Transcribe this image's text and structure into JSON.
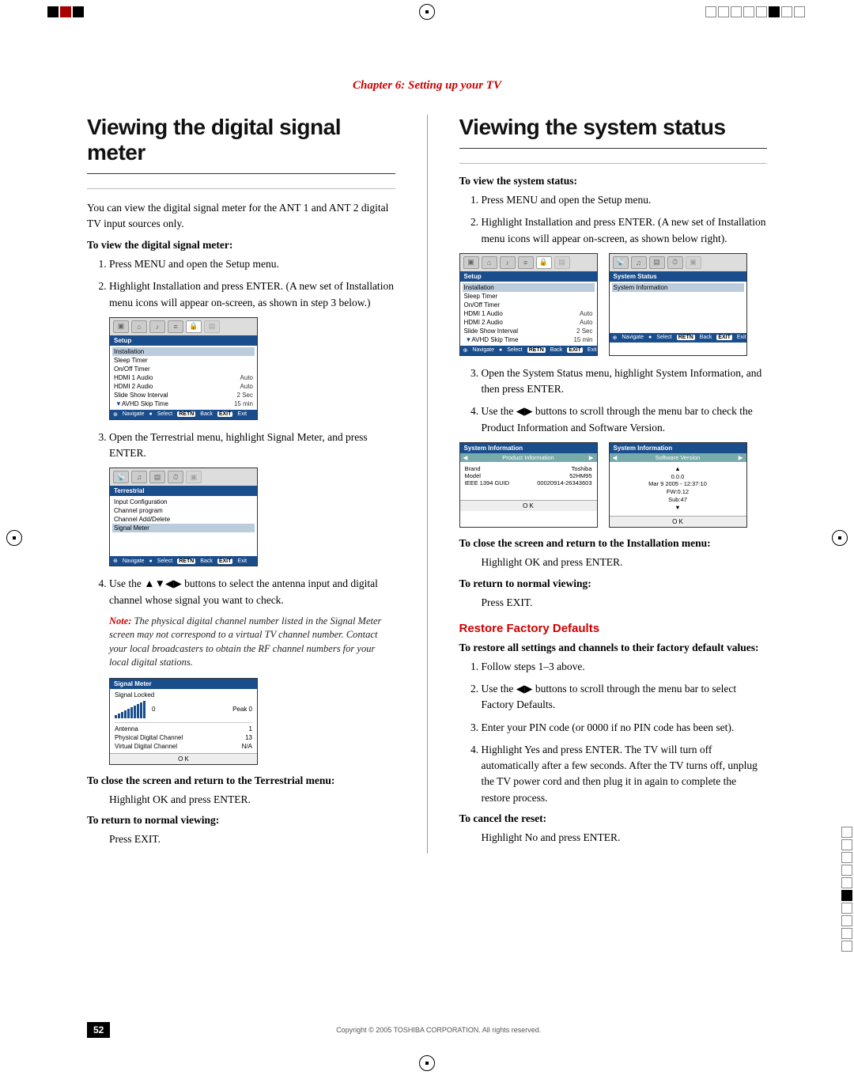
{
  "chapter": "Chapter 6: Setting up your TV",
  "pageNumber": "52",
  "copyright": "Copyright © 2005 TOSHIBA CORPORATION. All rights reserved.",
  "left": {
    "title": "Viewing the digital signal meter",
    "intro": "You can view the digital signal meter for the ANT 1 and ANT 2 digital TV input sources only.",
    "lead1": "To view the digital signal meter:",
    "step1": "Press MENU and open the Setup menu.",
    "step2": "Highlight Installation and press ENTER. (A new set of Installation menu icons will appear on-screen, as shown in step 3 below.)",
    "step3": "Open the Terrestrial menu, highlight Signal Meter, and press ENTER.",
    "step4": "Use the ▲▼◀▶ buttons to select the antenna input and digital channel whose signal you want to check.",
    "note": "The physical digital channel number listed in the Signal Meter screen may not correspond to a virtual TV channel number. Contact your local broadcasters to obtain the RF channel numbers for your local digital stations.",
    "noteLabel": "Note:",
    "lead2": "To close the screen and return to the Terrestrial menu:",
    "close1": "Highlight OK and press ENTER.",
    "lead3": "To return to normal viewing:",
    "close2": "Press EXIT.",
    "setupMenu": {
      "title": "Setup",
      "items": [
        {
          "label": "Installation",
          "val": "",
          "hl": true
        },
        {
          "label": "Sleep Timer",
          "val": ""
        },
        {
          "label": "On/Off Timer",
          "val": ""
        },
        {
          "label": "HDMI 1 Audio",
          "val": "Auto"
        },
        {
          "label": "HDMI 2 Audio",
          "val": "Auto"
        },
        {
          "label": "Slide Show Interval",
          "val": "2 Sec"
        },
        {
          "label": "AVHD Skip Time",
          "val": "15 min"
        }
      ],
      "footer": {
        "nav": "Navigate",
        "sel": "Select",
        "back": "Back",
        "exit": "Exit",
        "backKey": "RETN",
        "exitKey": "EXIT"
      }
    },
    "terrMenu": {
      "title": "Terrestrial",
      "items": [
        {
          "label": "Input Configuration"
        },
        {
          "label": "Channel program"
        },
        {
          "label": "Channel Add/Delete"
        },
        {
          "label": "Signal Meter",
          "hl": true
        }
      ]
    },
    "signalMeter": {
      "title": "Signal Meter",
      "locked": "Signal Locked",
      "value": "0",
      "peak": "Peak    0",
      "rows": [
        {
          "label": "Antenna",
          "val": "1"
        },
        {
          "label": "Physical Digital Channel",
          "val": "13"
        },
        {
          "label": "Virtual Digital Channel",
          "val": "N/A"
        }
      ],
      "ok": "O K"
    }
  },
  "right": {
    "title": "Viewing the system status",
    "lead1": "To view the system status:",
    "step1": "Press MENU and open the Setup menu.",
    "step2": "Highlight Installation and press ENTER. (A new set of Installation menu icons will appear on-screen, as shown below right).",
    "step3": "Open the System Status menu, highlight System Information, and then press ENTER.",
    "step4": "Use the ◀▶ buttons to scroll through the menu bar to check the Product Information and Software Version.",
    "setupMenu": {
      "title": "Setup",
      "items": [
        {
          "label": "Installation",
          "val": "",
          "hl": true
        },
        {
          "label": "Sleep Timer",
          "val": ""
        },
        {
          "label": "On/Off Timer",
          "val": ""
        },
        {
          "label": "HDMI 1 Audio",
          "val": "Auto"
        },
        {
          "label": "HDMI 2 Audio",
          "val": "Auto"
        },
        {
          "label": "Slide Show Interval",
          "val": "2 Sec"
        },
        {
          "label": "AVHD Skip Time",
          "val": "15 min"
        }
      ]
    },
    "statusMenu": {
      "title": "System Status",
      "items": [
        {
          "label": "System Information",
          "hl": true
        }
      ]
    },
    "prodInfo": {
      "header": "System Information",
      "sub": "Product Information",
      "rows": [
        {
          "label": "Brand",
          "val": "Toshiba"
        },
        {
          "label": "Model",
          "val": "52HM95"
        },
        {
          "label": "IEEE 1394 GUID",
          "val": "00020914-26343603"
        }
      ],
      "ok": "O K"
    },
    "swVer": {
      "header": "System Information",
      "sub": "Software Version",
      "lines": [
        "▲",
        "0.0.0",
        "Mar 9 2005 - 12:37:10",
        "FW:0.12",
        "Sub:47",
        "▼"
      ],
      "ok": "O K"
    },
    "lead2": "To close the screen and return to the Installation menu:",
    "close1": "Highlight OK and press ENTER.",
    "lead3": "To return to normal viewing:",
    "close2": "Press EXIT.",
    "sub1": "Restore Factory Defaults",
    "restoreLead": "To restore all settings and channels to their factory default values:",
    "rstep1": "Follow steps 1–3 above.",
    "rstep2": "Use the ◀▶ buttons to scroll through the menu bar to select Factory Defaults.",
    "rstep3": "Enter your PIN code (or 0000 if no PIN code has been set).",
    "rstep4": "Highlight Yes and press ENTER. The TV will turn off automatically after a few seconds. After the TV turns off, unplug the TV power cord and then plug it in again to complete the restore process.",
    "lead4": "To cancel the reset:",
    "cancel": "Highlight No and press ENTER."
  }
}
